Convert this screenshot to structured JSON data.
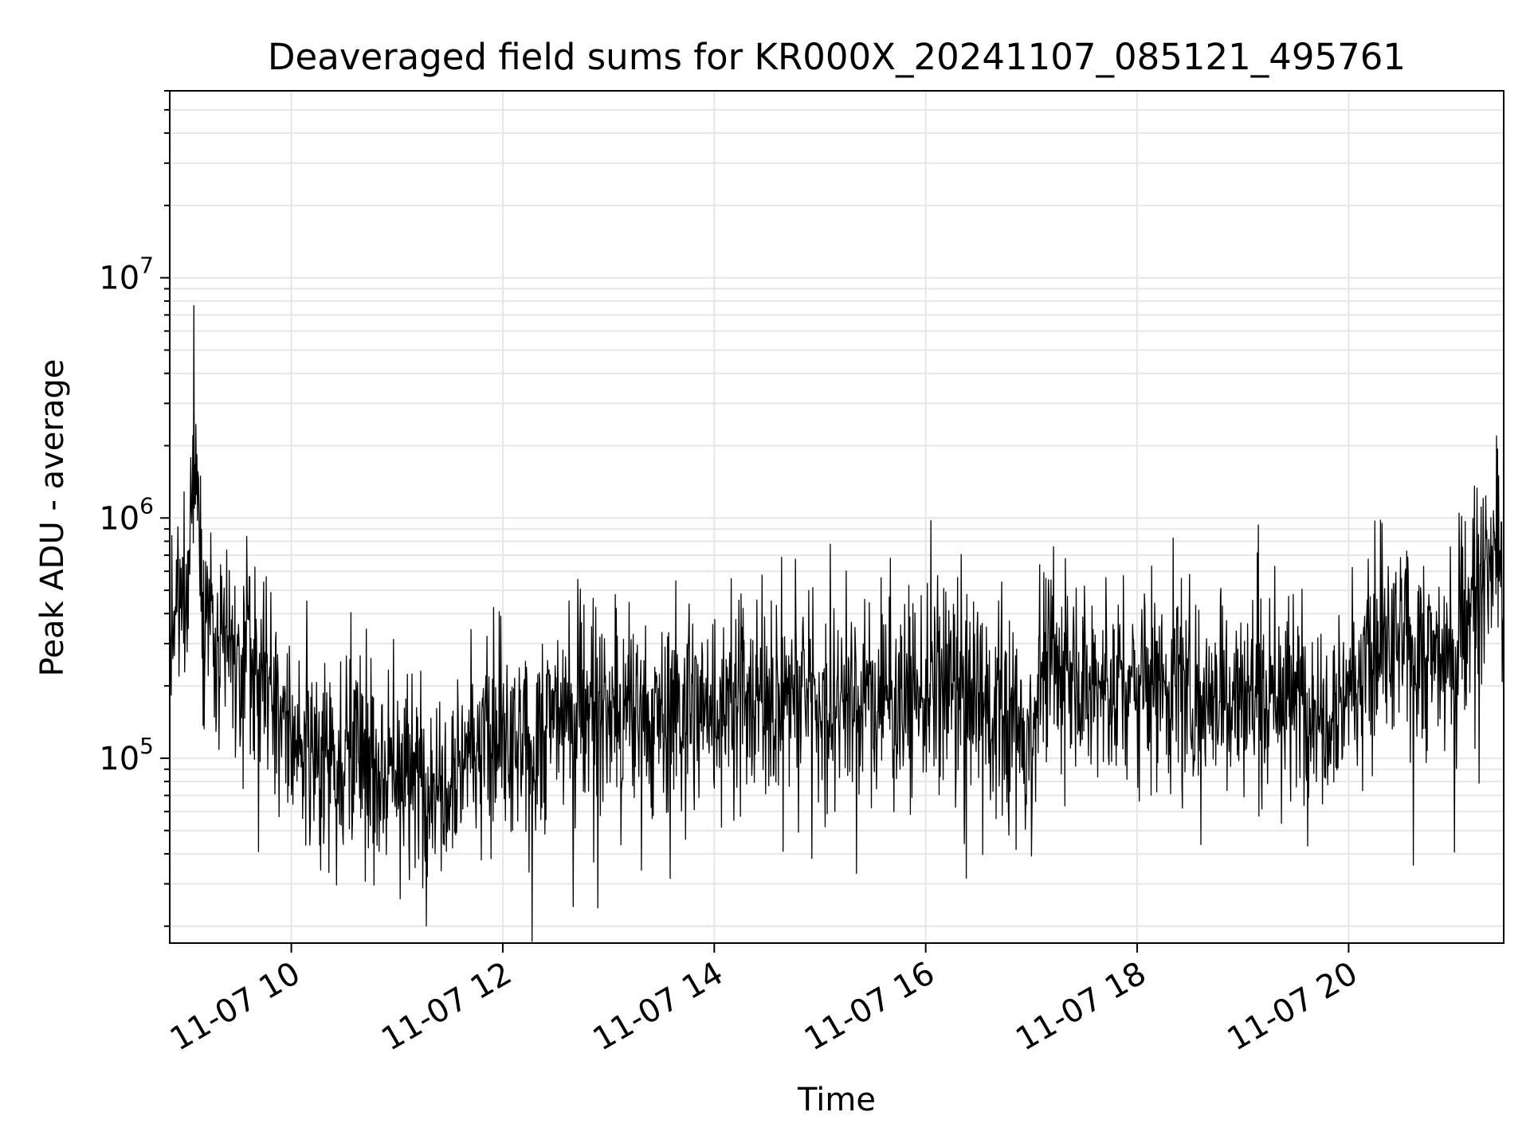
{
  "chart_data": {
    "type": "line",
    "title": "Deaveraged field sums for KR000X_20241107_085121_495761",
    "xlabel": "Time",
    "ylabel": "Peak ADU - average",
    "x_ticks": [
      "11-07 10",
      "11-07 12",
      "11-07 14",
      "11-07 16",
      "11-07 18",
      "11-07 20"
    ],
    "x_tick_hours": [
      10,
      12,
      14,
      16,
      18,
      20
    ],
    "xlim": [
      "2024-11-07 08:51",
      "2024-11-07 21:28"
    ],
    "yscale": "log",
    "ylim": [
      17000,
      60000000
    ],
    "y_ticks": [
      {
        "base": "10",
        "exp": "5",
        "value": 100000
      },
      {
        "base": "10",
        "exp": "6",
        "value": 1000000
      },
      {
        "base": "10",
        "exp": "7",
        "value": 10000000
      }
    ],
    "grid": true,
    "line_color": "#000000",
    "grid_color": "#e6e6e6",
    "series": [
      {
        "x": [
          "08:51",
          "09:00",
          "09:05",
          "09:08",
          "09:10",
          "09:13",
          "09:15",
          "09:20",
          "09:25",
          "09:30",
          "09:35",
          "09:40",
          "09:50",
          "10:00",
          "10:15",
          "10:30",
          "10:45",
          "11:00",
          "11:15",
          "11:30",
          "11:45",
          "12:00",
          "12:15",
          "12:30",
          "12:45",
          "13:00",
          "13:15",
          "13:30",
          "13:45",
          "14:00",
          "14:15",
          "14:30",
          "14:45",
          "15:00",
          "15:15",
          "15:30",
          "15:45",
          "16:00",
          "16:15",
          "16:30",
          "16:45",
          "17:00",
          "17:05",
          "17:15",
          "17:30",
          "17:45",
          "18:00",
          "18:15",
          "18:30",
          "18:45",
          "19:00",
          "19:15",
          "19:30",
          "19:45",
          "20:00",
          "20:15",
          "20:30",
          "20:45",
          "21:00",
          "21:10",
          "21:20",
          "21:28"
        ],
        "y": [
          300000,
          500000,
          2000000,
          1000000,
          350000,
          500000,
          300000,
          250000,
          300000,
          180000,
          400000,
          200000,
          150000,
          120000,
          110000,
          110000,
          100000,
          90000,
          80000,
          95000,
          120000,
          110000,
          100000,
          160000,
          170000,
          150000,
          140000,
          150000,
          160000,
          170000,
          175000,
          180000,
          185000,
          190000,
          180000,
          175000,
          185000,
          190000,
          180000,
          170000,
          160000,
          110000,
          240000,
          220000,
          210000,
          200000,
          205000,
          210000,
          200000,
          195000,
          190000,
          185000,
          180000,
          170000,
          200000,
          260000,
          300000,
          260000,
          280000,
          450000,
          650000,
          700000
        ]
      }
    ]
  }
}
